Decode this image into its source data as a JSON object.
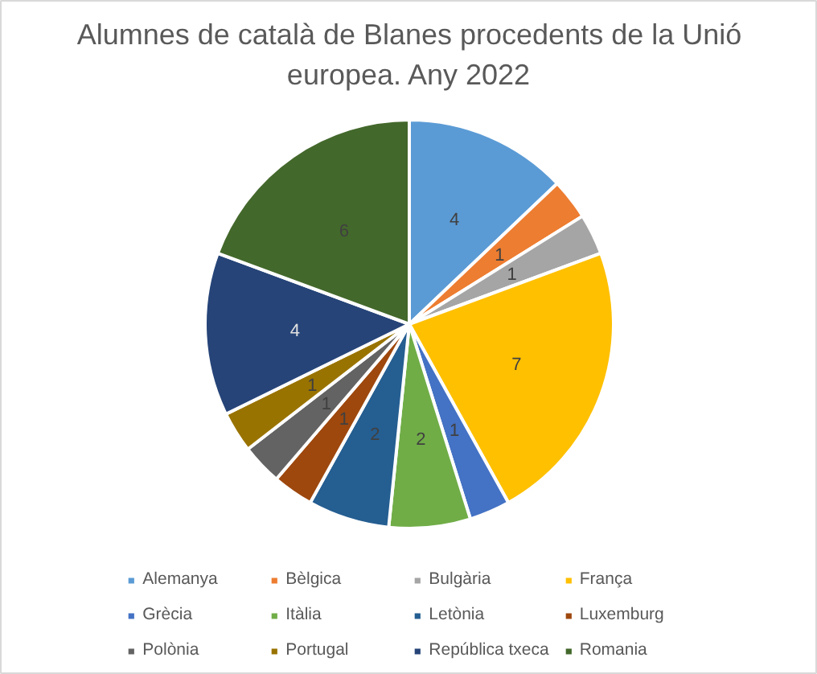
{
  "chart_data": {
    "type": "pie",
    "title": "Alumnes de català de Blanes procedents de la Unió europea. Any 2022",
    "categories": [
      "Alemanya",
      "Bèlgica",
      "Bulgària",
      "França",
      "Grècia",
      "Itàlia",
      "Letònia",
      "Luxemburg",
      "Polònia",
      "Portugal",
      "República txeca",
      "Romania"
    ],
    "values": [
      4,
      1,
      1,
      7,
      1,
      2,
      2,
      1,
      1,
      1,
      4,
      6
    ],
    "colors": [
      "#5b9bd5",
      "#ed7d31",
      "#a5a5a5",
      "#ffc000",
      "#4472c4",
      "#70ad47",
      "#255e91",
      "#9e480e",
      "#636363",
      "#997300",
      "#264478",
      "#43682b"
    ],
    "data_labels": true,
    "legend": "bottom"
  }
}
